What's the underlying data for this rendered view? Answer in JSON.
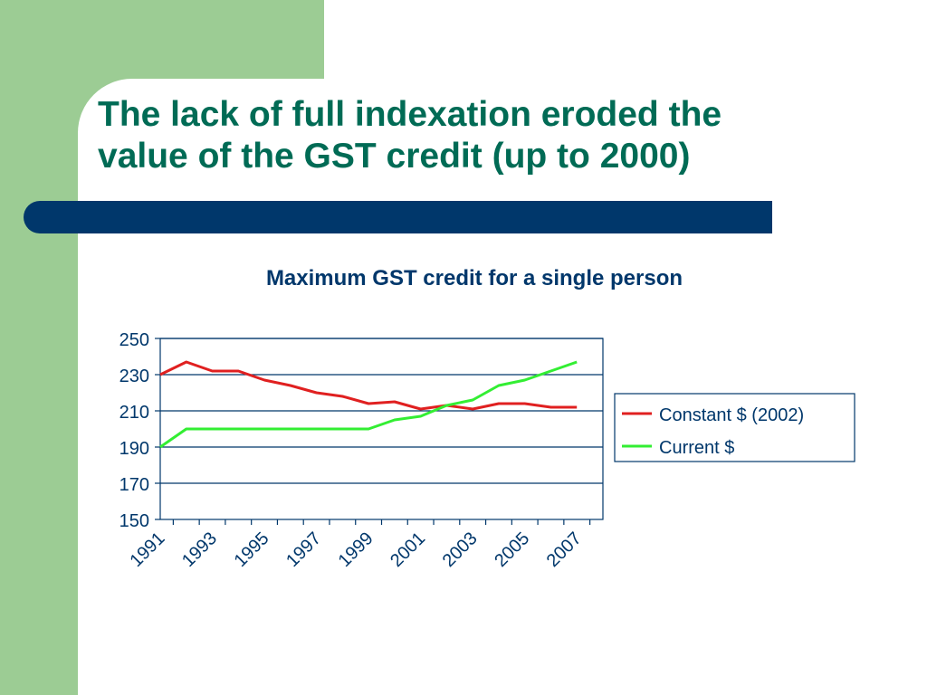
{
  "slide": {
    "title_line1": "The lack of full indexation eroded the",
    "title_line2": "value of the GST credit (up to 2000)",
    "colors": {
      "accent_green": "#9ccc94",
      "title_color": "#006b55",
      "bar_navy": "#00376b"
    }
  },
  "chart_data": {
    "type": "line",
    "title": "Maximum GST credit for a single person",
    "xlabel": "",
    "ylabel": "",
    "x": [
      1991,
      1992,
      1993,
      1994,
      1995,
      1996,
      1997,
      1998,
      1999,
      2000,
      2001,
      2002,
      2003,
      2004,
      2005,
      2006,
      2007,
      2008
    ],
    "x_tick_labels": [
      "1991",
      "1993",
      "1995",
      "1997",
      "1999",
      "2001",
      "2003",
      "2005",
      "2007"
    ],
    "y_tick_labels": [
      "250",
      "230",
      "210",
      "190",
      "170",
      "150"
    ],
    "ylim": [
      150,
      250
    ],
    "y_gridlines": [
      170,
      190,
      210,
      230,
      250
    ],
    "grid": true,
    "legend": "right",
    "series": [
      {
        "name": "Constant $ (2002)",
        "color": "#e02020",
        "values": [
          230,
          237,
          232,
          232,
          227,
          224,
          220,
          218,
          214,
          215,
          211,
          213,
          211,
          214,
          214,
          212,
          212,
          null
        ]
      },
      {
        "name": "Current $",
        "color": "#33ee33",
        "values": [
          190,
          200,
          200,
          200,
          200,
          200,
          200,
          200,
          200,
          205,
          207,
          213,
          216,
          224,
          227,
          232,
          237,
          null
        ]
      }
    ]
  }
}
